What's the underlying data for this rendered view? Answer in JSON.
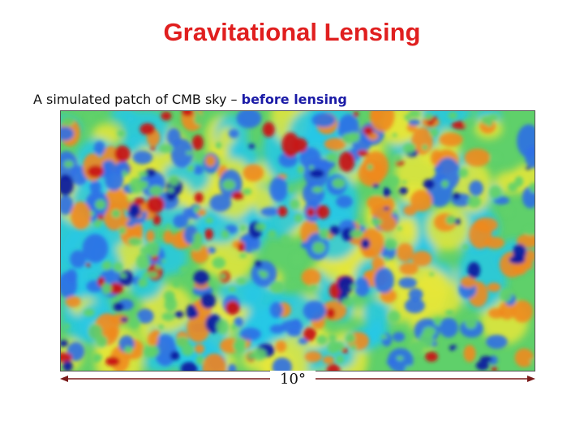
{
  "slide": {
    "title": "Gravitational Lensing",
    "caption_prefix": "A simulated patch of CMB sky – ",
    "caption_highlight": "before lensing",
    "scale_label": "10°"
  },
  "colors": {
    "title": "#e01f1f",
    "highlight": "#1a1aa6",
    "scale_arrow": "#7a1a1a",
    "map_palette": [
      "#0a1aa0",
      "#2f6fe6",
      "#26c8e6",
      "#5fd06a",
      "#e6e63a",
      "#f08a1e",
      "#c81414"
    ]
  },
  "icons": {
    "scale_arrow": "double-headed-arrow-icon"
  }
}
